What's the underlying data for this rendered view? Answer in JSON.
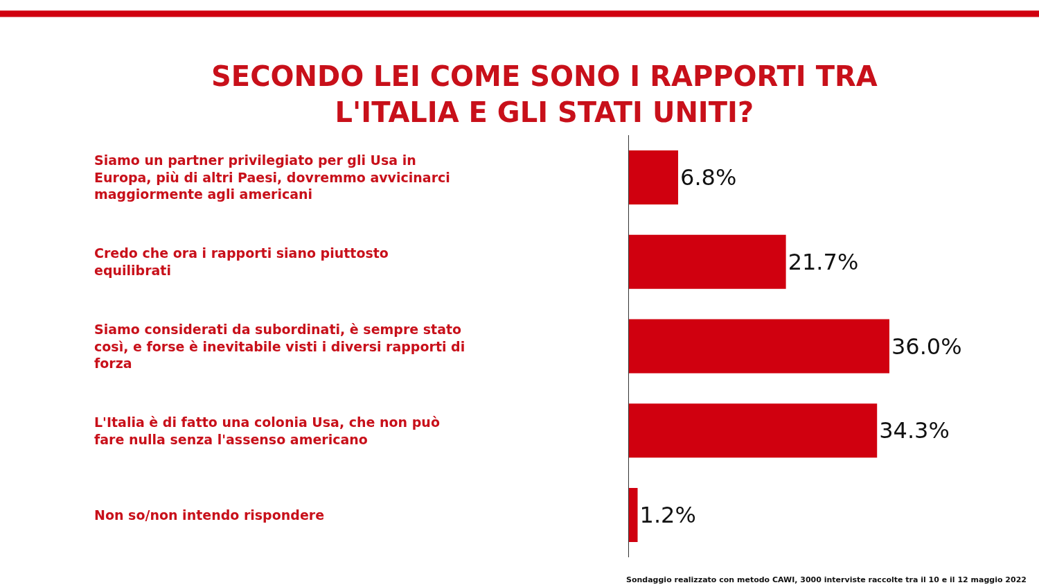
{
  "chart_data": {
    "type": "bar",
    "orientation": "horizontal",
    "title": "SECONDO LEI COME SONO I RAPPORTI TRA\nL'ITALIA E GLI STATI UNITI?",
    "categories": [
      "Siamo un partner privilegiato per gli Usa in\nEuropa, più di altri Paesi, dovremmo avvicinarci\nmaggiormente agli americani",
      "Credo che ora i rapporti siano piuttosto\nequilibrati",
      "Siamo considerati da subordinati, è sempre stato\ncosì, e forse è inevitabile visti i diversi rapporti di\nforza",
      "L'Italia è di fatto una colonia Usa, che non può\nfare nulla senza l'assenso americano",
      "Non so/non intendo rispondere"
    ],
    "values": [
      6.8,
      21.7,
      36.0,
      34.3,
      1.2
    ],
    "value_labels": [
      "6.8%",
      "21.7%",
      "36.0%",
      "34.3%",
      "1.2%"
    ],
    "color": "#d0000f",
    "legend": false,
    "annotations": [
      "Sondaggio realizzato con metodo CAWI, 3000 interviste raccolte tra il 10 e il 12 maggio 2022"
    ]
  }
}
